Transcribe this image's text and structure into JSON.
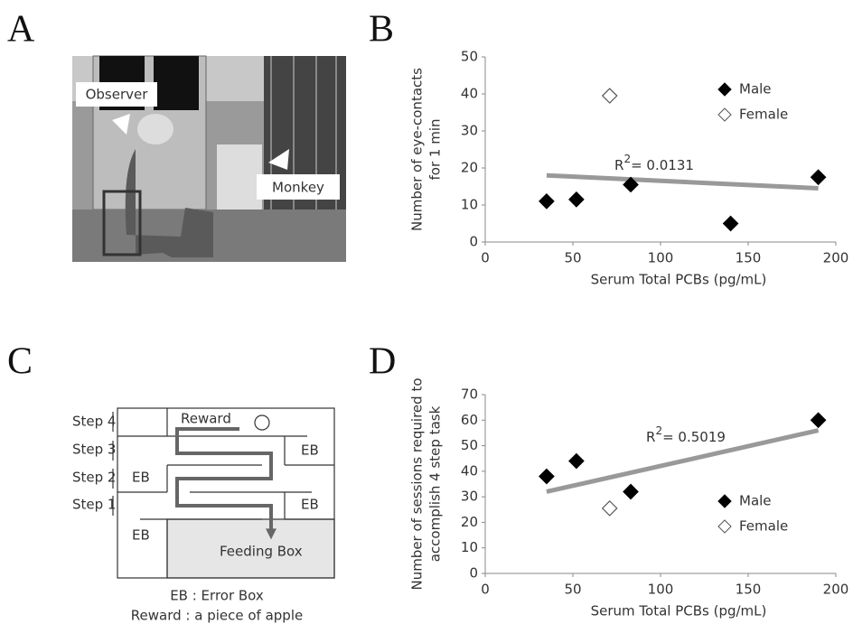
{
  "panels": [
    "A",
    "B",
    "C",
    "D"
  ],
  "photo": {
    "labels": [
      "Observer",
      "Monkey"
    ]
  },
  "diagram": {
    "steps": [
      "Step 4",
      "Step 3",
      "Step 2",
      "Step 1"
    ],
    "reward": "Reward",
    "error_box": "EB",
    "feeding_box": "Feeding Box",
    "notes": [
      "EB : Error Box",
      "Reward : a piece of apple"
    ]
  },
  "chart_data": [
    {
      "type": "scatter",
      "x_label": "Serum Total PCBs (pg/mL)",
      "y_label": [
        "Number of eye-contacts",
        "for 1 min"
      ],
      "xlim": [
        0,
        200
      ],
      "xticks": [
        0,
        50,
        100,
        150,
        200
      ],
      "ylim": [
        0,
        50
      ],
      "yticks": [
        0,
        10,
        20,
        30,
        40,
        50
      ],
      "legend": "upper right",
      "series": [
        {
          "name": "Male",
          "color": "#000000",
          "filled": true,
          "x": [
            35,
            52,
            83,
            140,
            190
          ],
          "values": [
            11,
            11.5,
            15.5,
            5,
            17.5
          ]
        },
        {
          "name": "Female",
          "color": "#555555",
          "filled": false,
          "x": [
            71
          ],
          "values": [
            39.5
          ]
        }
      ],
      "trendline": {
        "color": "#999999",
        "x": [
          35,
          190
        ],
        "y": [
          18,
          14.5
        ]
      },
      "annotation": {
        "base": "R",
        "superscript": "2",
        "text": "= 0.0131"
      }
    },
    {
      "type": "scatter",
      "x_label": "Serum Total PCBs (pg/mL)",
      "y_label": [
        "Number of sessions required to",
        "accomplish 4 step task"
      ],
      "xlim": [
        0,
        200
      ],
      "xticks": [
        0,
        50,
        100,
        150,
        200
      ],
      "ylim": [
        0,
        70
      ],
      "yticks": [
        0,
        10,
        20,
        30,
        40,
        50,
        60,
        70
      ],
      "legend": "lower right",
      "series": [
        {
          "name": "Male",
          "color": "#000000",
          "filled": true,
          "x": [
            35,
            52,
            83,
            190
          ],
          "values": [
            38,
            44,
            32,
            60
          ]
        },
        {
          "name": "Female",
          "color": "#555555",
          "filled": false,
          "x": [
            71
          ],
          "values": [
            25.5
          ]
        }
      ],
      "trendline": {
        "color": "#999999",
        "x": [
          35,
          190
        ],
        "y": [
          32,
          56
        ]
      },
      "annotation": {
        "base": "R",
        "superscript": "2",
        "text": "= 0.5019"
      }
    }
  ]
}
